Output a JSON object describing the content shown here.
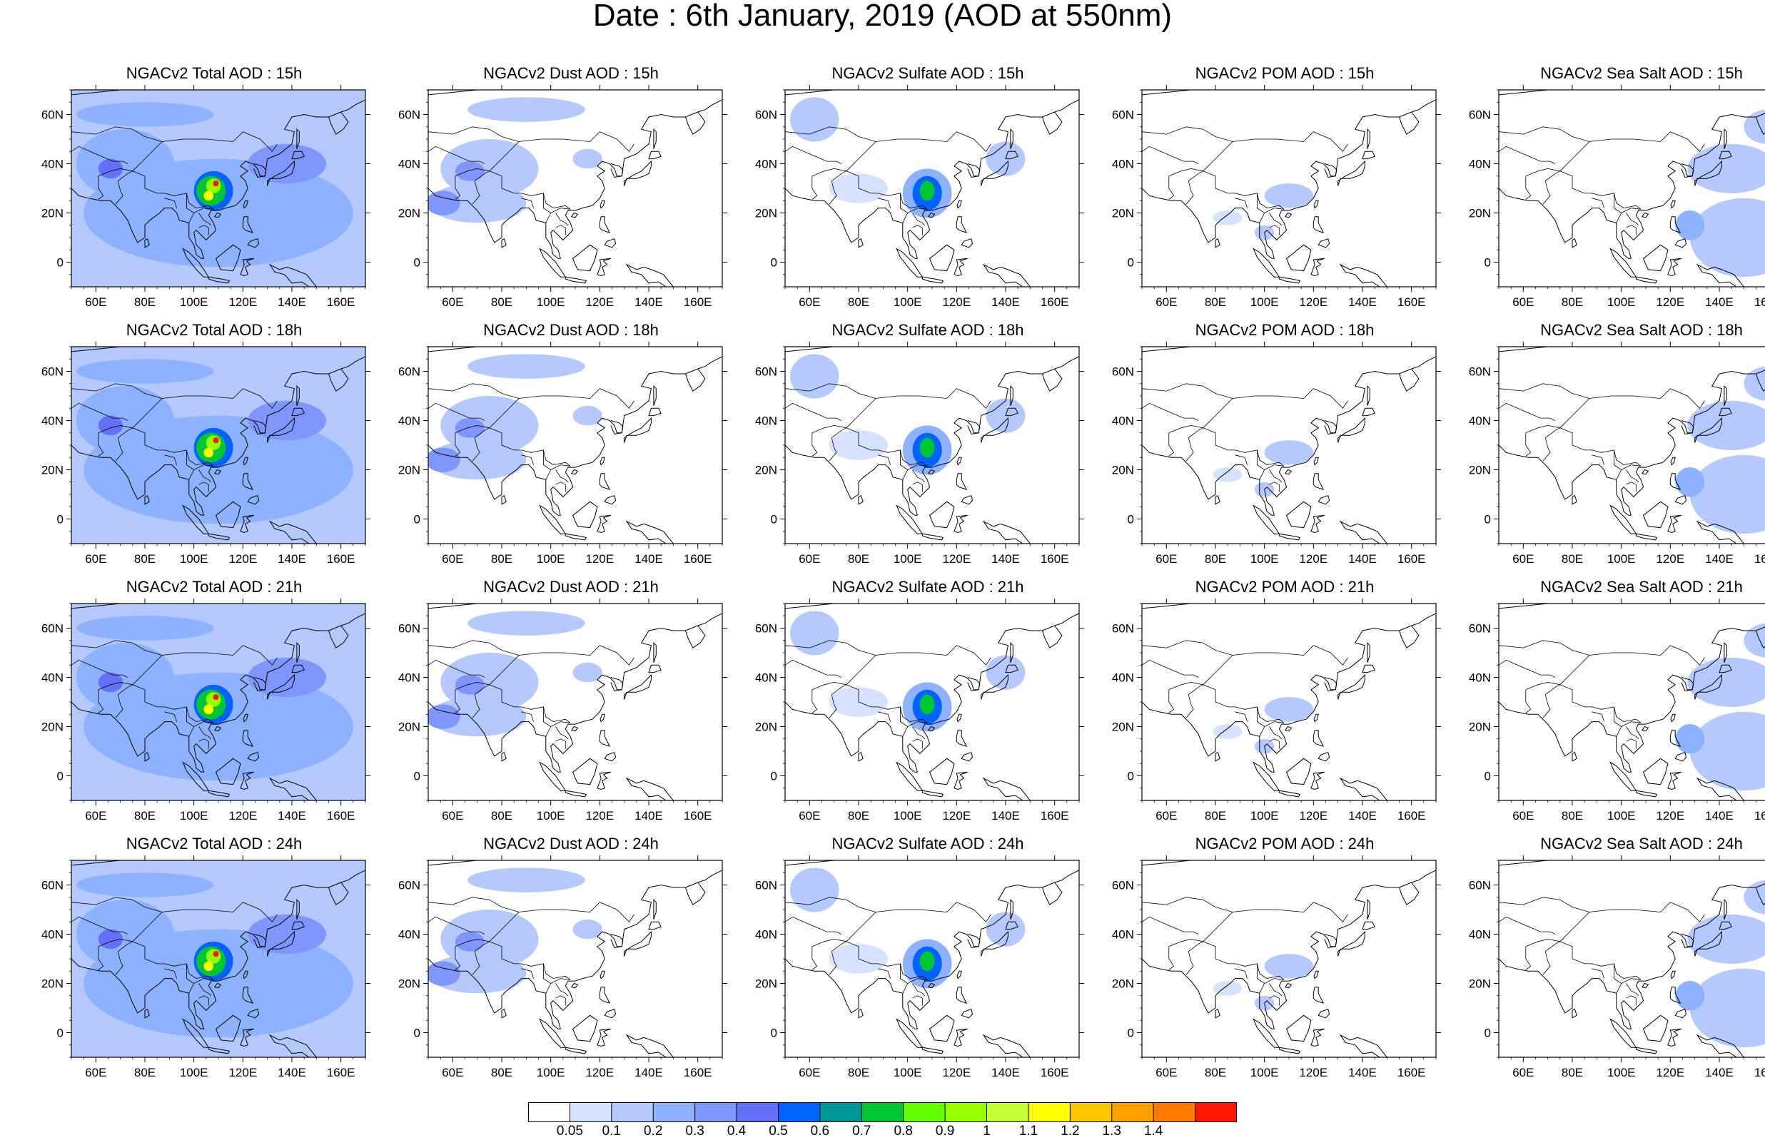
{
  "title": "Date : 6th January, 2019 (AOD at 550nm)",
  "panels": [
    [
      {
        "title": "NGACv2 Total AOD : 15h",
        "species": "total"
      },
      {
        "title": "NGACv2 Dust AOD : 15h",
        "species": "dust"
      },
      {
        "title": "NGACv2 Sulfate AOD : 15h",
        "species": "sulfate"
      },
      {
        "title": "NGACv2 POM AOD : 15h",
        "species": "pom"
      },
      {
        "title": "NGACv2 Sea Salt AOD : 15h",
        "species": "seasalt"
      }
    ],
    [
      {
        "title": "NGACv2 Total AOD : 18h",
        "species": "total"
      },
      {
        "title": "NGACv2 Dust AOD : 18h",
        "species": "dust"
      },
      {
        "title": "NGACv2 Sulfate AOD : 18h",
        "species": "sulfate"
      },
      {
        "title": "NGACv2 POM AOD : 18h",
        "species": "pom"
      },
      {
        "title": "NGACv2 Sea Salt AOD : 18h",
        "species": "seasalt"
      }
    ],
    [
      {
        "title": "NGACv2 Total AOD : 21h",
        "species": "total"
      },
      {
        "title": "NGACv2 Dust AOD : 21h",
        "species": "dust"
      },
      {
        "title": "NGACv2 Sulfate AOD : 21h",
        "species": "sulfate"
      },
      {
        "title": "NGACv2 POM AOD : 21h",
        "species": "pom"
      },
      {
        "title": "NGACv2 Sea Salt AOD : 21h",
        "species": "seasalt"
      }
    ],
    [
      {
        "title": "NGACv2 Total AOD : 24h",
        "species": "total"
      },
      {
        "title": "NGACv2 Dust AOD : 24h",
        "species": "dust"
      },
      {
        "title": "NGACv2 Sulfate AOD : 24h",
        "species": "sulfate"
      },
      {
        "title": "NGACv2 POM AOD : 24h",
        "species": "pom"
      },
      {
        "title": "NGACv2 Sea Salt  AOD : 24h",
        "species": "seasalt"
      }
    ]
  ],
  "map": {
    "lon_ticks": [
      "60E",
      "80E",
      "100E",
      "120E",
      "140E",
      "160E"
    ],
    "lat_ticks": [
      "60N",
      "40N",
      "20N",
      "0"
    ],
    "lon_tick_values": [
      60,
      80,
      100,
      120,
      140,
      160
    ],
    "lat_tick_values": [
      60,
      40,
      20,
      0
    ],
    "lon_range": [
      50,
      170
    ],
    "lat_range": [
      -10,
      70
    ]
  },
  "colorbar": {
    "labels": [
      "0.05",
      "0.1",
      "0.2",
      "0.3",
      "0.4",
      "0.5",
      "0.6",
      "0.7",
      "0.8",
      "0.9",
      "1",
      "1.1",
      "1.2",
      "1.3",
      "1.4"
    ],
    "colors": [
      "#ffffff",
      "#d6e2ff",
      "#b5c9ff",
      "#8eb2ff",
      "#7f96ff",
      "#6370f8",
      "#0063ff",
      "#009696",
      "#00c633",
      "#63ff00",
      "#96ff00",
      "#c6ff33",
      "#ffff00",
      "#ffc600",
      "#ffa000",
      "#ff7c00",
      "#ff1900"
    ]
  }
}
